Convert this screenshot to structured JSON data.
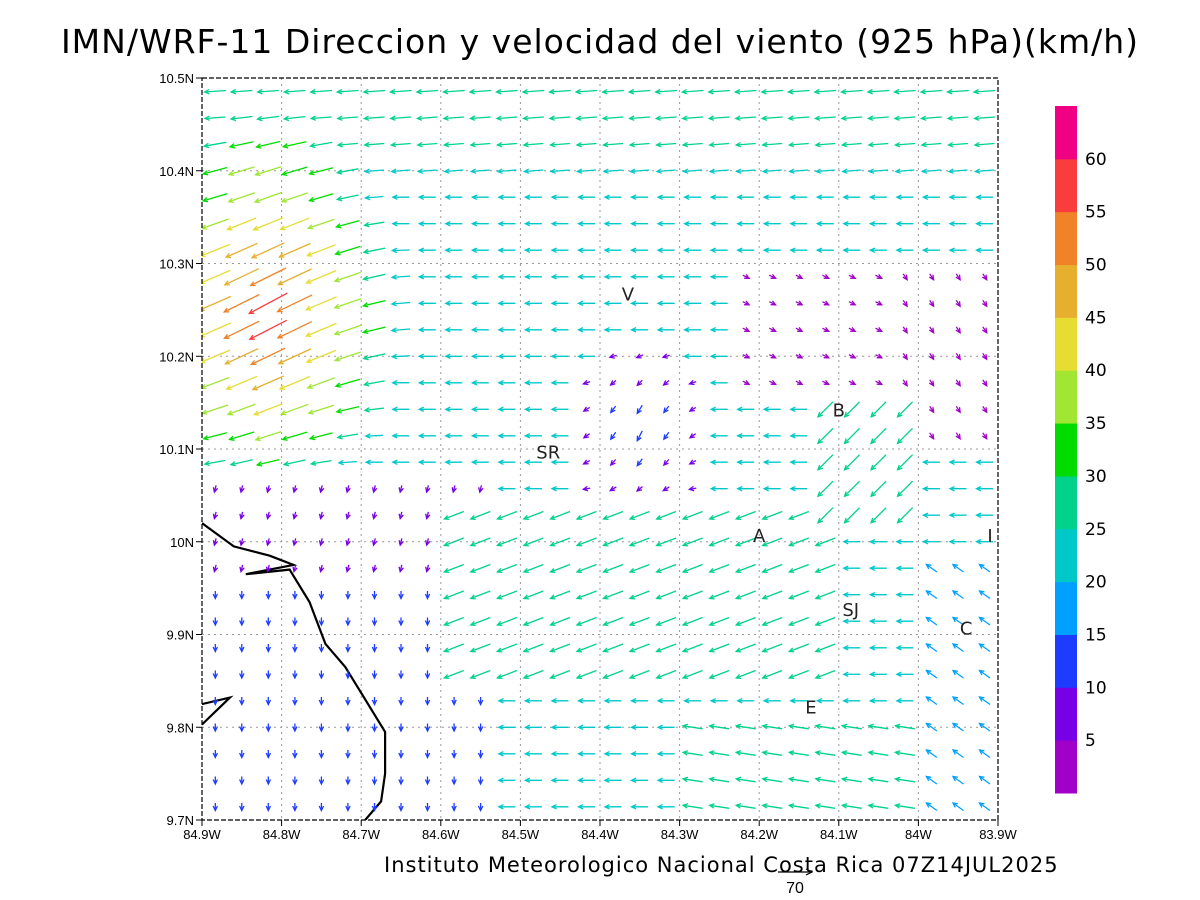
{
  "title": "IMN/WRF-11 Direccion y velocidad del viento (925 hPa)(km/h)",
  "footer": "Instituto Meteorologico Nacional Costa Rica 07Z14JUL2025",
  "reference_vector": {
    "label": "70",
    "speed_kmh": 70
  },
  "map": {
    "lon_range": [
      -84.9,
      -83.9
    ],
    "lat_range": [
      9.7,
      10.5
    ],
    "x_ticks": [
      "84.9W",
      "84.8W",
      "84.7W",
      "84.6W",
      "84.5W",
      "84.4W",
      "84.3W",
      "84.2W",
      "84.1W",
      "84W",
      "83.9W"
    ],
    "y_ticks": [
      "9.7N",
      "9.8N",
      "9.9N",
      "10N",
      "10.1N",
      "10.2N",
      "10.3N",
      "10.4N",
      "10.5N"
    ],
    "gridlines": true,
    "places": [
      {
        "label": "V",
        "lon": -84.365,
        "lat": 10.26
      },
      {
        "label": "SR",
        "lon": -84.465,
        "lat": 10.09
      },
      {
        "label": "B",
        "lon": -84.1,
        "lat": 10.135
      },
      {
        "label": "A",
        "lon": -84.2,
        "lat": 10.0
      },
      {
        "label": "I",
        "lon": -83.91,
        "lat": 10.0
      },
      {
        "label": "SJ",
        "lon": -84.085,
        "lat": 9.92
      },
      {
        "label": "C",
        "lon": -83.94,
        "lat": 9.9
      },
      {
        "label": "E",
        "lon": -84.135,
        "lat": 9.815
      }
    ],
    "coastline": [
      {
        "lon": -84.9,
        "lat": 10.02
      },
      {
        "lon": -84.86,
        "lat": 9.995
      },
      {
        "lon": -84.815,
        "lat": 9.985
      },
      {
        "lon": -84.8,
        "lat": 9.98
      },
      {
        "lon": -84.785,
        "lat": 9.975
      },
      {
        "lon": -84.845,
        "lat": 9.965
      },
      {
        "lon": -84.79,
        "lat": 9.97
      },
      {
        "lon": -84.765,
        "lat": 9.935
      },
      {
        "lon": -84.745,
        "lat": 9.89
      },
      {
        "lon": -84.72,
        "lat": 9.865
      },
      {
        "lon": -84.695,
        "lat": 9.83
      },
      {
        "lon": -84.67,
        "lat": 9.795
      },
      {
        "lon": -84.67,
        "lat": 9.75
      },
      {
        "lon": -84.675,
        "lat": 9.72
      },
      {
        "lon": -84.695,
        "lat": 9.7
      }
    ],
    "coastline2": [
      {
        "lon": -84.9,
        "lat": 9.825
      },
      {
        "lon": -84.865,
        "lat": 9.832
      },
      {
        "lon": -84.9,
        "lat": 9.803
      }
    ]
  },
  "colorbar": {
    "labels": [
      "5",
      "10",
      "15",
      "20",
      "25",
      "30",
      "35",
      "40",
      "45",
      "50",
      "55",
      "60"
    ],
    "colors": [
      "#a000c8",
      "#7800e6",
      "#1e3cff",
      "#00a0ff",
      "#00c8c8",
      "#00d28c",
      "#00dc00",
      "#a0e632",
      "#e6dc32",
      "#e6af2d",
      "#f08228",
      "#fa3c3c",
      "#f00082"
    ]
  }
}
